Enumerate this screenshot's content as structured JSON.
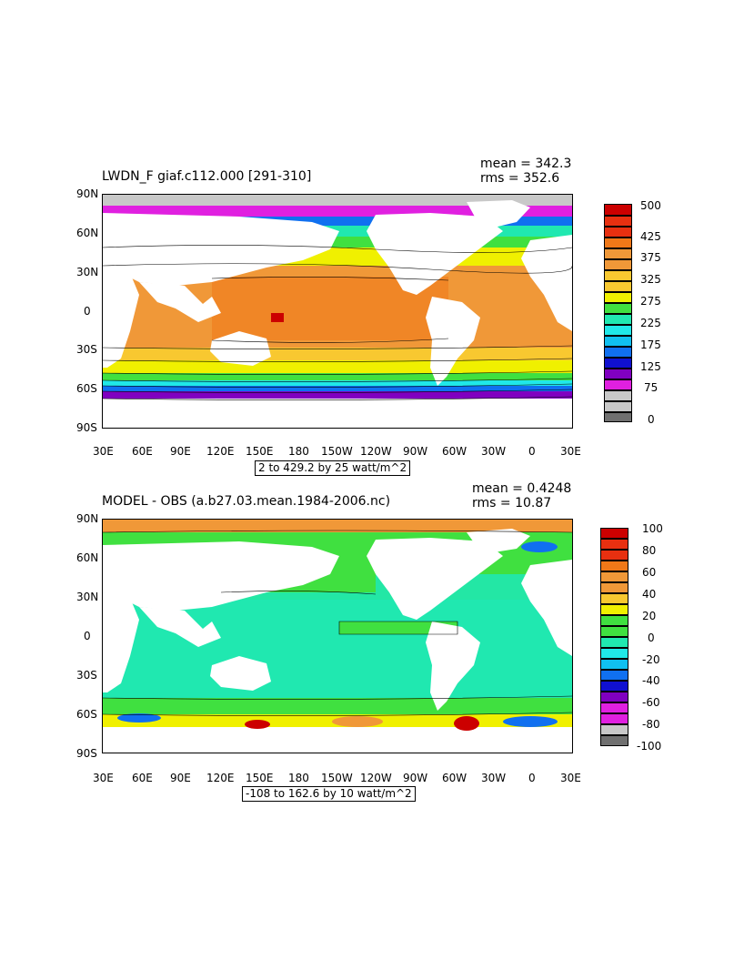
{
  "panels": [
    {
      "title": "LWDN_F giaf.c112.000 [291-310]",
      "stats": [
        "mean = 342.3",
        "rms = 352.6"
      ],
      "range": "2 to 429.2 by 25 watt/m^2",
      "lat_labels": [
        "90N",
        "60N",
        "30N",
        "0",
        "30S",
        "60S",
        "90S"
      ],
      "lon_labels": [
        "30E",
        "60E",
        "90E",
        "120E",
        "150E",
        "180",
        "150W",
        "120W",
        "90W",
        "60W",
        "30W",
        "0",
        "30E"
      ],
      "colorbar": {
        "labels": [
          "500",
          "425",
          "375",
          "325",
          "275",
          "225",
          "175",
          "125",
          "75",
          "0"
        ],
        "colors": [
          "#cc0000",
          "#e83010",
          "#f07818",
          "#f09838",
          "#f8c830",
          "#f0f000",
          "#40e040",
          "#20e8b0",
          "#20e8e8",
          "#10c0f0",
          "#1070f0",
          "#1010d0",
          "#8000c0",
          "#e020e0",
          "#c8c8c8",
          "#707070"
        ]
      }
    },
    {
      "title": "MODEL - OBS (a.b27.03.mean.1984-2006.nc)",
      "stats": [
        "mean = 0.4248",
        "rms = 10.87"
      ],
      "range": "-108 to 162.6 by 10 watt/m^2",
      "lat_labels": [
        "90N",
        "60N",
        "30N",
        "0",
        "30S",
        "60S",
        "90S"
      ],
      "lon_labels": [
        "30E",
        "60E",
        "90E",
        "120E",
        "150E",
        "180",
        "150W",
        "120W",
        "90W",
        "60W",
        "30W",
        "0",
        "30E"
      ],
      "colorbar": {
        "labels": [
          "100",
          "80",
          "60",
          "40",
          "20",
          "0",
          "-20",
          "-40",
          "-60",
          "-80",
          "-100"
        ],
        "colors": [
          "#cc0000",
          "#e83010",
          "#f07818",
          "#f09838",
          "#f8c830",
          "#f0f000",
          "#40e040",
          "#20e8b0",
          "#20e8e8",
          "#10c0f0",
          "#1070f0",
          "#1010d0",
          "#8000c0",
          "#e020e0",
          "#c8c8c8",
          "#707070"
        ]
      }
    }
  ]
}
